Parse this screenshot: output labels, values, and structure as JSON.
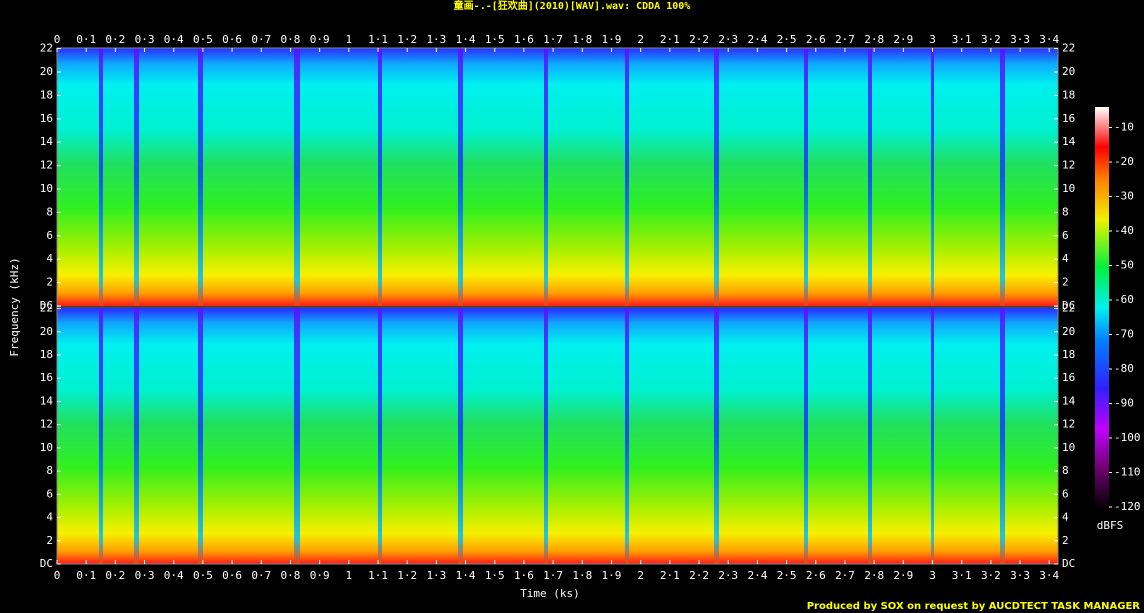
{
  "chart_data": {
    "type": "spectrogram",
    "title": "童画-.-[狂欢曲](2010)[WAV].wav: CDDA 100%",
    "xlabel": "Time (ks)",
    "ylabel": "Frequency (kHz)",
    "footer": "Produced by SOX on request by AUCDTECT TASK MANAGER",
    "xlim": [
      0,
      3.43
    ],
    "xticks": [
      0,
      {
        "value": 0.1,
        "label": "0·1"
      },
      {
        "value": 0.2,
        "label": "0·2"
      },
      {
        "value": 0.3,
        "label": "0·3"
      },
      {
        "value": 0.4,
        "label": "0·4"
      },
      {
        "value": 0.5,
        "label": "0·5"
      },
      {
        "value": 0.6,
        "label": "0·6"
      },
      {
        "value": 0.7,
        "label": "0·7"
      },
      {
        "value": 0.8,
        "label": "0·8"
      },
      {
        "value": 0.9,
        "label": "0·9"
      },
      1,
      {
        "value": 1.1,
        "label": "1·1"
      },
      {
        "value": 1.2,
        "label": "1·2"
      },
      {
        "value": 1.3,
        "label": "1·3"
      },
      {
        "value": 1.4,
        "label": "1·4"
      },
      {
        "value": 1.5,
        "label": "1·5"
      },
      {
        "value": 1.6,
        "label": "1·6"
      },
      {
        "value": 1.7,
        "label": "1·7"
      },
      {
        "value": 1.8,
        "label": "1·8"
      },
      {
        "value": 1.9,
        "label": "1·9"
      },
      2,
      {
        "value": 2.1,
        "label": "2·1"
      },
      {
        "value": 2.2,
        "label": "2·2"
      },
      {
        "value": 2.3,
        "label": "2·3"
      },
      {
        "value": 2.4,
        "label": "2·4"
      },
      {
        "value": 2.5,
        "label": "2·5"
      },
      {
        "value": 2.6,
        "label": "2·6"
      },
      {
        "value": 2.7,
        "label": "2·7"
      },
      {
        "value": 2.8,
        "label": "2·8"
      },
      {
        "value": 2.9,
        "label": "2·9"
      },
      3,
      {
        "value": 3.1,
        "label": "3·1"
      },
      {
        "value": 3.2,
        "label": "3·2"
      },
      {
        "value": 3.3,
        "label": "3·3"
      },
      {
        "value": 3.4,
        "label": "3·4"
      }
    ],
    "ylim": [
      0,
      22.05
    ],
    "yticks": [
      {
        "value": 0,
        "label": "DC"
      },
      2,
      4,
      6,
      8,
      10,
      12,
      14,
      16,
      18,
      20,
      22
    ],
    "colorbar": {
      "label": "dBFS",
      "lim": [
        -120,
        0
      ],
      "ticks": [
        -10,
        -20,
        -30,
        -40,
        -50,
        -60,
        -70,
        -80,
        -90,
        -100,
        -110,
        -120
      ]
    }
  }
}
